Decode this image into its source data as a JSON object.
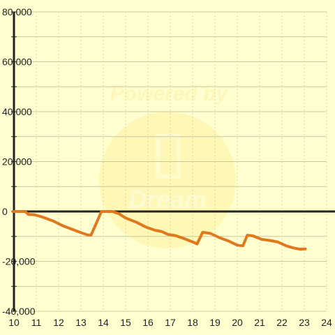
{
  "chart_data": {
    "type": "line",
    "watermark": {
      "line1": "Powered by",
      "line2": "Dream"
    },
    "xlim": [
      10,
      24
    ],
    "ylim": [
      -40000,
      80000
    ],
    "x_ticks": [
      10,
      11,
      12,
      13,
      14,
      15,
      16,
      17,
      18,
      19,
      20,
      21,
      22,
      23,
      24
    ],
    "x_tick_labels": [
      "10",
      "11",
      "12",
      "13",
      "14",
      "15",
      "16",
      "17",
      "18",
      "19",
      "20",
      "21",
      "22",
      "23",
      "24"
    ],
    "y_ticks": [
      -40000,
      -20000,
      0,
      20000,
      40000,
      60000,
      80000
    ],
    "y_tick_labels": [
      "-40,000",
      "-20,000",
      "0",
      "20,000",
      "40,000",
      "60,000",
      "80,000"
    ],
    "grid": true,
    "series": [
      {
        "color": "#e07820",
        "points": [
          [
            9.95,
            0
          ],
          [
            10.5,
            0
          ],
          [
            10.65,
            -1200
          ],
          [
            10.9,
            -1300
          ],
          [
            11.3,
            -2300
          ],
          [
            11.75,
            -3800
          ],
          [
            12.2,
            -5800
          ],
          [
            12.5,
            -6800
          ],
          [
            13.0,
            -8500
          ],
          [
            13.3,
            -9400
          ],
          [
            13.45,
            -9500
          ],
          [
            13.92,
            0
          ],
          [
            14.4,
            0
          ],
          [
            14.7,
            -900
          ],
          [
            15.0,
            -2600
          ],
          [
            15.5,
            -4400
          ],
          [
            15.9,
            -6200
          ],
          [
            16.3,
            -7500
          ],
          [
            16.6,
            -8000
          ],
          [
            16.9,
            -9200
          ],
          [
            17.2,
            -9600
          ],
          [
            17.6,
            -10800
          ],
          [
            18.0,
            -12200
          ],
          [
            18.2,
            -13000
          ],
          [
            18.45,
            -8300
          ],
          [
            18.8,
            -8800
          ],
          [
            19.2,
            -10500
          ],
          [
            19.6,
            -11800
          ],
          [
            20.0,
            -13500
          ],
          [
            20.25,
            -13800
          ],
          [
            20.45,
            -9500
          ],
          [
            20.7,
            -9800
          ],
          [
            21.1,
            -11200
          ],
          [
            21.45,
            -11600
          ],
          [
            21.8,
            -12200
          ],
          [
            22.2,
            -13800
          ],
          [
            22.5,
            -14600
          ],
          [
            22.8,
            -15100
          ],
          [
            23.05,
            -15000
          ]
        ]
      }
    ]
  }
}
